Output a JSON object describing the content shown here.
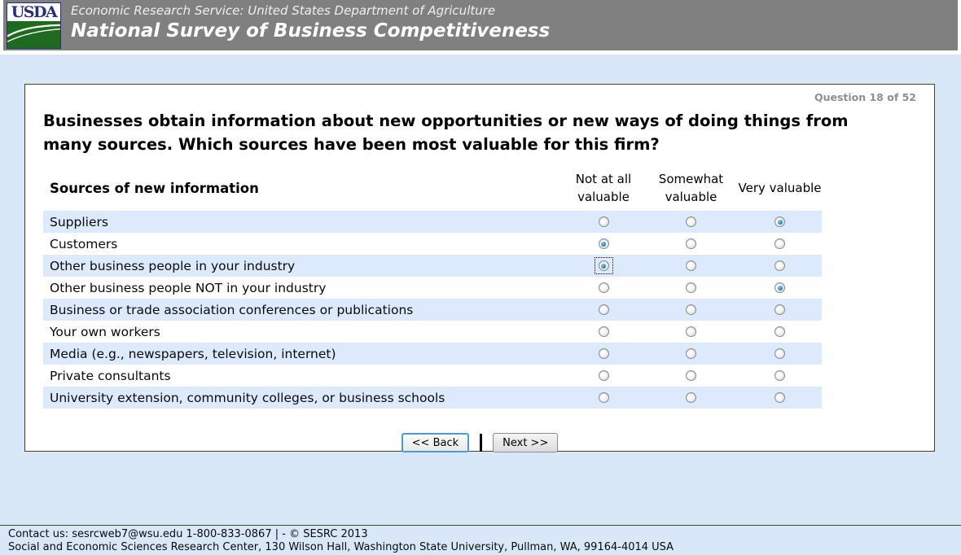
{
  "header": {
    "logo_text": "USDA",
    "agency_line": "Economic Research Service: United States Department of Agriculture",
    "survey_title": "National Survey of Business Competitiveness"
  },
  "question": {
    "counter": "Question 18 of 52",
    "text": "Businesses obtain information about new opportunities or new ways of doing things from many sources. Which sources have been most valuable for this firm?"
  },
  "table": {
    "row_header": "Sources of new information",
    "columns": [
      "Not at all valuable",
      "Somewhat valuable",
      "Very valuable"
    ],
    "rows": [
      {
        "label": "Suppliers",
        "selected": 2,
        "focused": false
      },
      {
        "label": "Customers",
        "selected": 0,
        "focused": false
      },
      {
        "label": "Other business people in your industry",
        "selected": 0,
        "focused": true
      },
      {
        "label": "Other business people NOT in your industry",
        "selected": 2,
        "focused": false
      },
      {
        "label": "Business or trade association conferences or publications",
        "selected": -1,
        "focused": false
      },
      {
        "label": "Your own workers",
        "selected": -1,
        "focused": false
      },
      {
        "label": "Media (e.g., newspapers, television, internet)",
        "selected": -1,
        "focused": false
      },
      {
        "label": "Private consultants",
        "selected": -1,
        "focused": false
      },
      {
        "label": "University extension, community colleges, or business schools",
        "selected": -1,
        "focused": false
      }
    ]
  },
  "buttons": {
    "back_label": "<< Back",
    "next_label": "Next >>"
  },
  "footer": {
    "line1": "Contact us: sesrcweb7@wsu.edu 1-800-833-0867 | - © SESRC 2013",
    "line2": "Social and Economic Sciences Research Center, 130 Wilson Hall, Washington State University, Pullman, WA, 99164-4014 USA"
  },
  "colors": {
    "header_gray": "#808080",
    "page_blue": "#d9e8f8",
    "row_highlight_blue": "#ddeafd",
    "box_border_olive": "#3c4a17",
    "logo_navy": "#262f7d",
    "logo_green": "#1e6b1f",
    "radio_selected_blue": "#1a70b8",
    "focus_button_border": "#4b9cd3"
  }
}
